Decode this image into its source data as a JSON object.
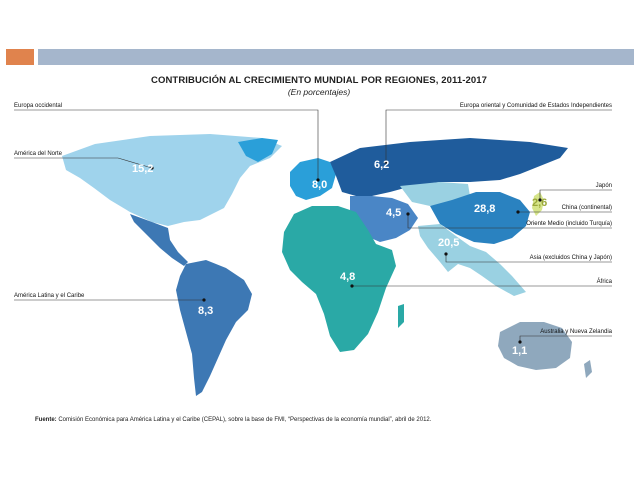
{
  "header": {
    "accent_color": "#e0834d",
    "bar_color": "#a5b6cc"
  },
  "title": "CONTRIBUCIÓN AL CRECIMIENTO MUNDIAL POR REGIONES, 2011-2017",
  "subtitle": "(En porcentajes)",
  "regions": {
    "europa_occidental": {
      "label": "Europa occidental",
      "value": "8,0",
      "color": "#2a9fd9"
    },
    "america_norte": {
      "label": "América del Norte",
      "value": "15,2",
      "color": "#9fd3ec"
    },
    "america_latina": {
      "label": "América Latina y el Caribe",
      "value": "8,3",
      "color": "#3d78b4"
    },
    "europa_oriental": {
      "label": "Europa oriental y Comunidad de Estados Independientes",
      "value": "6,2",
      "color": "#1f5c9c"
    },
    "japon": {
      "label": "Japón",
      "value": "2,6",
      "color": "#d6e58a"
    },
    "china": {
      "label": "China (continental)",
      "value": "28,8",
      "color": "#2a82c0"
    },
    "oriente_medio": {
      "label": "Oriente Medio (incluido Turquía)",
      "value": "4,5",
      "color": "#4a86c6"
    },
    "asia": {
      "label": "Asia (excluidos China y Japón)",
      "value": "20,5",
      "color": "#9ad1e2"
    },
    "africa": {
      "label": "África",
      "value": "4,8",
      "color": "#2aa9a6"
    },
    "australia": {
      "label": "Australia y Nueva Zelandia",
      "value": "1,1",
      "color": "#8fa8bd"
    }
  },
  "source": {
    "prefix": "Fuente:",
    "text": "Comisión Económica para América Latina y el Caribe (CEPAL), sobre la base de FMI, “Perspectivas de la economía mundial”, abril de 2012."
  }
}
